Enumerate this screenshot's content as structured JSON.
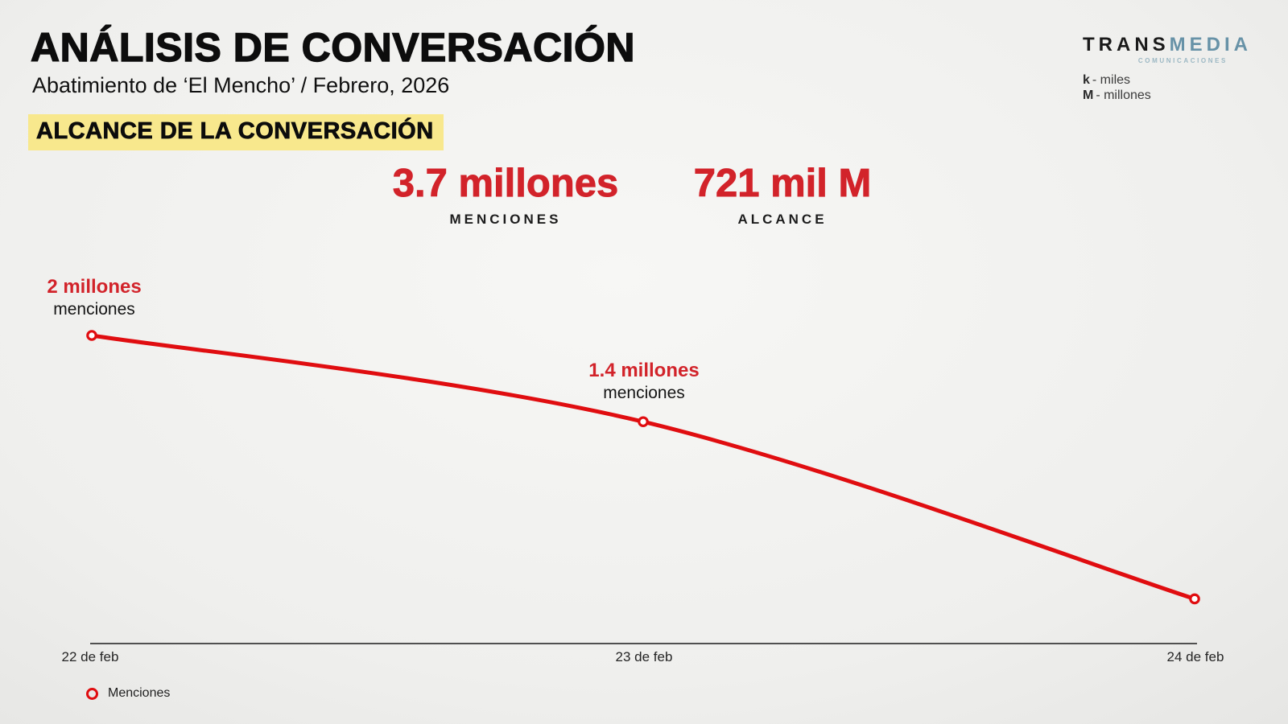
{
  "header": {
    "title": "ANÁLISIS DE CONVERSACIÓN",
    "subtitle": "Abatimiento de ‘El Mencho’ / Febrero, 2026",
    "section_heading": "ALCANCE DE LA CONVERSACIÓN"
  },
  "logo": {
    "part1": "TRANS",
    "part2": "MEDIA",
    "tagline": "COMUNICACIONES"
  },
  "units_key": [
    {
      "symbol": "k",
      "text": "- miles"
    },
    {
      "symbol": "M",
      "text": "- millones"
    }
  ],
  "stats": [
    {
      "value": "3.7 millones",
      "label": "MENCIONES"
    },
    {
      "value": "721 mil M",
      "label": "ALCANCE"
    }
  ],
  "chart_data": {
    "type": "line",
    "title": "ALCANCE DE LA CONVERSACIÓN",
    "categories": [
      "22 de feb",
      "23 de feb",
      "24 de feb"
    ],
    "series": [
      {
        "name": "Menciones",
        "values": [
          2000000,
          1440000,
          290000
        ]
      }
    ],
    "point_labels": [
      {
        "value": "2 millones",
        "unit": "menciones"
      },
      {
        "value": "1.4 millones",
        "unit": "menciones"
      },
      null
    ],
    "xlabel": "",
    "ylabel": "",
    "ylim": [
      0,
      2000000
    ],
    "grid": false,
    "marker": "open-circle",
    "legend": {
      "position": "bottom-left",
      "items": [
        "Menciones"
      ]
    }
  },
  "colors": {
    "accent_red": "#D2232A",
    "line_red": "#E00D10",
    "highlight_yellow": "#F8E88D",
    "logo_blue": "#6792A7",
    "logo_blue_light": "#9CB8C4",
    "axis_gray": "#3A3A3A",
    "text_dark": "#121212"
  }
}
